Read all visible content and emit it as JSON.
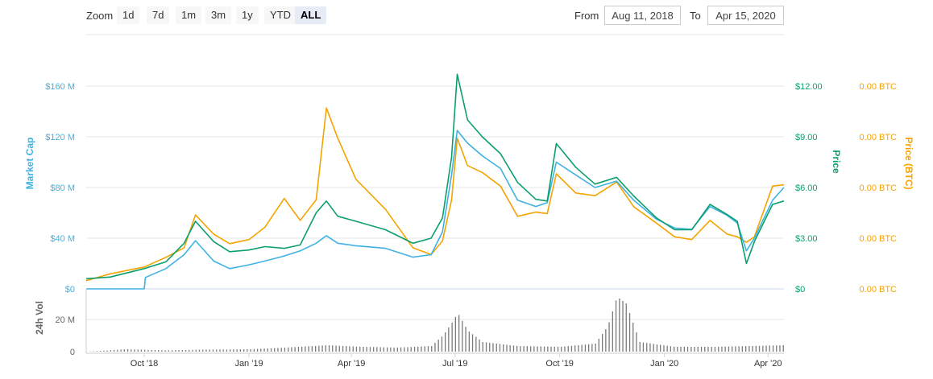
{
  "toolbar": {
    "zoom_label": "Zoom",
    "zoom_buttons": [
      "1d",
      "7d",
      "1m",
      "3m",
      "1y",
      "YTD",
      "ALL"
    ],
    "active_zoom": "ALL",
    "from_label": "From",
    "from_value": "Aug 11, 2018",
    "to_label": "To",
    "to_value": "Apr 15, 2020"
  },
  "colors": {
    "market_cap": "#3fb1e3",
    "price_usd": "#0b9f6d",
    "price_btc": "#f5a300",
    "volume": "#7a7a7a"
  },
  "chart_data": {
    "type": "line",
    "axes": {
      "market_cap": {
        "label": "Market Cap",
        "ticks": [
          "$0",
          "$40 M",
          "$80 M",
          "$120 M",
          "$160 M"
        ],
        "ylim": [
          0,
          160000000
        ]
      },
      "price": {
        "label": "Price",
        "ticks": [
          "$0",
          "$3.00",
          "$6.00",
          "$9.00",
          "$12.00"
        ],
        "ylim": [
          0,
          12
        ]
      },
      "price_btc": {
        "label": "Price (BTC)",
        "ticks": [
          "0.00 BTC",
          "0.00 BTC",
          "0.00 BTC",
          "0.00 BTC",
          "0.00 BTC"
        ]
      },
      "volume": {
        "label": "24h Vol",
        "ticks": [
          "0",
          "20 M"
        ],
        "ylim": [
          0,
          40000000
        ]
      }
    },
    "x_ticks": [
      {
        "label": "Oct '18",
        "date": "2018-10-01"
      },
      {
        "label": "Jan '19",
        "date": "2019-01-01"
      },
      {
        "label": "Apr '19",
        "date": "2019-04-01"
      },
      {
        "label": "Jul '19",
        "date": "2019-07-01"
      },
      {
        "label": "Oct '19",
        "date": "2019-10-01"
      },
      {
        "label": "Jan '20",
        "date": "2020-01-01"
      },
      {
        "label": "Apr '20",
        "date": "2020-04-01"
      }
    ],
    "x_range": [
      "2018-08-11",
      "2020-04-15"
    ],
    "series": [
      {
        "name": "Market Cap",
        "axis": "market_cap",
        "points": [
          [
            "2018-08-11",
            0
          ],
          [
            "2018-10-01",
            0
          ],
          [
            "2018-10-02",
            9000000
          ],
          [
            "2018-10-20",
            16000000
          ],
          [
            "2018-11-05",
            27000000
          ],
          [
            "2018-11-15",
            38000000
          ],
          [
            "2018-12-01",
            22000000
          ],
          [
            "2018-12-15",
            16000000
          ],
          [
            "2019-01-01",
            19000000
          ],
          [
            "2019-01-15",
            22000000
          ],
          [
            "2019-02-01",
            26000000
          ],
          [
            "2019-02-15",
            30000000
          ],
          [
            "2019-03-01",
            36000000
          ],
          [
            "2019-03-10",
            42000000
          ],
          [
            "2019-03-20",
            36000000
          ],
          [
            "2019-04-05",
            34000000
          ],
          [
            "2019-05-01",
            32000000
          ],
          [
            "2019-05-25",
            25000000
          ],
          [
            "2019-06-10",
            27000000
          ],
          [
            "2019-06-20",
            45000000
          ],
          [
            "2019-06-28",
            90000000
          ],
          [
            "2019-07-03",
            125000000
          ],
          [
            "2019-07-12",
            115000000
          ],
          [
            "2019-07-25",
            105000000
          ],
          [
            "2019-08-10",
            95000000
          ],
          [
            "2019-08-25",
            70000000
          ],
          [
            "2019-09-10",
            65000000
          ],
          [
            "2019-09-20",
            68000000
          ],
          [
            "2019-09-28",
            100000000
          ],
          [
            "2019-10-15",
            90000000
          ],
          [
            "2019-11-01",
            80000000
          ],
          [
            "2019-11-20",
            85000000
          ],
          [
            "2019-12-05",
            70000000
          ],
          [
            "2019-12-25",
            55000000
          ],
          [
            "2020-01-10",
            48000000
          ],
          [
            "2020-01-25",
            47000000
          ],
          [
            "2020-02-10",
            65000000
          ],
          [
            "2020-02-25",
            58000000
          ],
          [
            "2020-03-05",
            52000000
          ],
          [
            "2020-03-13",
            30000000
          ],
          [
            "2020-03-20",
            40000000
          ],
          [
            "2020-04-05",
            70000000
          ],
          [
            "2020-04-15",
            80000000
          ]
        ]
      },
      {
        "name": "Price",
        "axis": "price",
        "points": [
          [
            "2018-08-11",
            0.6
          ],
          [
            "2018-09-01",
            0.7
          ],
          [
            "2018-10-01",
            1.2
          ],
          [
            "2018-10-20",
            1.6
          ],
          [
            "2018-11-05",
            2.7
          ],
          [
            "2018-11-15",
            4.0
          ],
          [
            "2018-12-01",
            2.8
          ],
          [
            "2018-12-15",
            2.2
          ],
          [
            "2019-01-01",
            2.3
          ],
          [
            "2019-01-15",
            2.5
          ],
          [
            "2019-02-01",
            2.4
          ],
          [
            "2019-02-15",
            2.6
          ],
          [
            "2019-03-01",
            4.5
          ],
          [
            "2019-03-10",
            5.2
          ],
          [
            "2019-03-20",
            4.3
          ],
          [
            "2019-04-05",
            4.0
          ],
          [
            "2019-05-01",
            3.5
          ],
          [
            "2019-05-25",
            2.7
          ],
          [
            "2019-06-10",
            3.0
          ],
          [
            "2019-06-20",
            4.2
          ],
          [
            "2019-06-28",
            7.8
          ],
          [
            "2019-07-03",
            12.7
          ],
          [
            "2019-07-12",
            10.0
          ],
          [
            "2019-07-25",
            9.0
          ],
          [
            "2019-08-10",
            8.0
          ],
          [
            "2019-08-25",
            6.3
          ],
          [
            "2019-09-10",
            5.3
          ],
          [
            "2019-09-20",
            5.2
          ],
          [
            "2019-09-28",
            8.6
          ],
          [
            "2019-10-15",
            7.2
          ],
          [
            "2019-11-01",
            6.2
          ],
          [
            "2019-11-20",
            6.6
          ],
          [
            "2019-12-05",
            5.5
          ],
          [
            "2019-12-25",
            4.2
          ],
          [
            "2020-01-10",
            3.5
          ],
          [
            "2020-01-25",
            3.5
          ],
          [
            "2020-02-10",
            5.0
          ],
          [
            "2020-02-25",
            4.4
          ],
          [
            "2020-03-05",
            4.0
          ],
          [
            "2020-03-13",
            1.5
          ],
          [
            "2020-03-20",
            2.8
          ],
          [
            "2020-04-05",
            5.0
          ],
          [
            "2020-04-15",
            5.2
          ]
        ]
      },
      {
        "name": "Price (BTC)",
        "axis": "price_btc",
        "points": [
          [
            "2018-08-11",
            0.6
          ],
          [
            "2018-09-01",
            1.1
          ],
          [
            "2018-10-01",
            1.6
          ],
          [
            "2018-10-20",
            2.3
          ],
          [
            "2018-11-05",
            3.0
          ],
          [
            "2018-11-15",
            5.4
          ],
          [
            "2018-12-01",
            4.0
          ],
          [
            "2018-12-15",
            3.3
          ],
          [
            "2019-01-01",
            3.6
          ],
          [
            "2019-01-15",
            4.5
          ],
          [
            "2019-02-01",
            6.6
          ],
          [
            "2019-02-15",
            5.0
          ],
          [
            "2019-03-01",
            6.5
          ],
          [
            "2019-03-10",
            13.2
          ],
          [
            "2019-03-20",
            11.0
          ],
          [
            "2019-04-05",
            8.0
          ],
          [
            "2019-05-01",
            5.8
          ],
          [
            "2019-05-25",
            3.0
          ],
          [
            "2019-06-10",
            2.5
          ],
          [
            "2019-06-20",
            3.5
          ],
          [
            "2019-06-28",
            6.5
          ],
          [
            "2019-07-03",
            11.0
          ],
          [
            "2019-07-12",
            9.0
          ],
          [
            "2019-07-25",
            8.5
          ],
          [
            "2019-08-10",
            7.5
          ],
          [
            "2019-08-25",
            5.3
          ],
          [
            "2019-09-10",
            5.6
          ],
          [
            "2019-09-20",
            5.5
          ],
          [
            "2019-09-28",
            8.4
          ],
          [
            "2019-10-15",
            7.0
          ],
          [
            "2019-11-01",
            6.8
          ],
          [
            "2019-11-20",
            7.8
          ],
          [
            "2019-12-05",
            6.0
          ],
          [
            "2019-12-25",
            4.8
          ],
          [
            "2020-01-10",
            3.8
          ],
          [
            "2020-01-25",
            3.6
          ],
          [
            "2020-02-10",
            5.0
          ],
          [
            "2020-02-25",
            4.0
          ],
          [
            "2020-03-05",
            3.8
          ],
          [
            "2020-03-13",
            3.4
          ],
          [
            "2020-03-20",
            3.8
          ],
          [
            "2020-04-05",
            7.5
          ],
          [
            "2020-04-15",
            7.6
          ]
        ]
      },
      {
        "name": "24h Vol",
        "axis": "volume",
        "points": [
          [
            "2018-08-11",
            0
          ],
          [
            "2018-09-15",
            1500000
          ],
          [
            "2018-10-20",
            800000
          ],
          [
            "2018-11-15",
            1200000
          ],
          [
            "2019-01-01",
            1500000
          ],
          [
            "2019-02-01",
            2500000
          ],
          [
            "2019-03-10",
            4000000
          ],
          [
            "2019-04-10",
            3000000
          ],
          [
            "2019-05-10",
            2500000
          ],
          [
            "2019-06-10",
            3500000
          ],
          [
            "2019-06-20",
            10000000
          ],
          [
            "2019-06-28",
            18000000
          ],
          [
            "2019-07-03",
            24000000
          ],
          [
            "2019-07-12",
            13000000
          ],
          [
            "2019-07-25",
            6000000
          ],
          [
            "2019-08-25",
            3500000
          ],
          [
            "2019-10-01",
            3000000
          ],
          [
            "2019-11-01",
            5000000
          ],
          [
            "2019-11-12",
            16000000
          ],
          [
            "2019-11-20",
            34000000
          ],
          [
            "2019-11-28",
            30000000
          ],
          [
            "2019-12-10",
            6000000
          ],
          [
            "2020-01-10",
            3000000
          ],
          [
            "2020-02-15",
            3000000
          ],
          [
            "2020-03-15",
            3500000
          ],
          [
            "2020-04-15",
            4000000
          ]
        ]
      }
    ],
    "grid": "horizontal",
    "legend": "none"
  }
}
